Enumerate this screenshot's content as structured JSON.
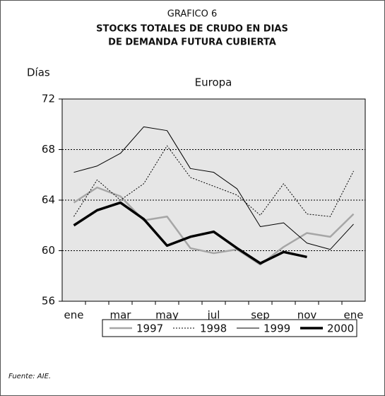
{
  "chart_data": {
    "type": "line",
    "title": "GRAFICO 6",
    "subtitle": [
      "STOCKS TOTALES DE CRUDO EN DIAS",
      "DE DEMANDA FUTURA CUBIERTA"
    ],
    "y_label": "Días",
    "panel_title": "Europa",
    "source": "Fuente: AIE.",
    "categories": [
      "ene",
      null,
      "mar",
      null,
      "may",
      null,
      "jul",
      null,
      "sep",
      null,
      "nov",
      null,
      "ene"
    ],
    "series": [
      {
        "name": "1997",
        "color": "#a6a6a6",
        "width": 2.5,
        "dash": "none",
        "values": [
          63.8,
          65.0,
          64.3,
          62.4,
          62.7,
          60.2,
          59.8,
          60.1,
          58.9,
          60.3,
          61.4,
          61.1,
          62.9
        ]
      },
      {
        "name": "1998",
        "color": "#000000",
        "width": 1,
        "dash": "2 2",
        "values": [
          62.7,
          65.6,
          64.0,
          65.3,
          68.3,
          65.8,
          65.1,
          64.4,
          62.8,
          65.3,
          62.9,
          62.7,
          66.3
        ]
      },
      {
        "name": "1999",
        "color": "#000000",
        "width": 1,
        "dash": "none",
        "values": [
          66.2,
          66.7,
          67.7,
          69.8,
          69.5,
          66.5,
          66.2,
          64.9,
          61.9,
          62.2,
          60.6,
          60.1,
          62.1
        ]
      },
      {
        "name": "2000",
        "color": "#000000",
        "width": 3.5,
        "dash": "none",
        "values": [
          62.0,
          63.2,
          63.8,
          62.5,
          60.4,
          61.1,
          61.5,
          60.2,
          59.0,
          59.9,
          59.5,
          null,
          null
        ]
      }
    ],
    "ylim": [
      56,
      72
    ],
    "yticks": [
      56,
      60,
      64,
      68,
      72
    ],
    "grid": true,
    "background": "#e6e6e6"
  }
}
